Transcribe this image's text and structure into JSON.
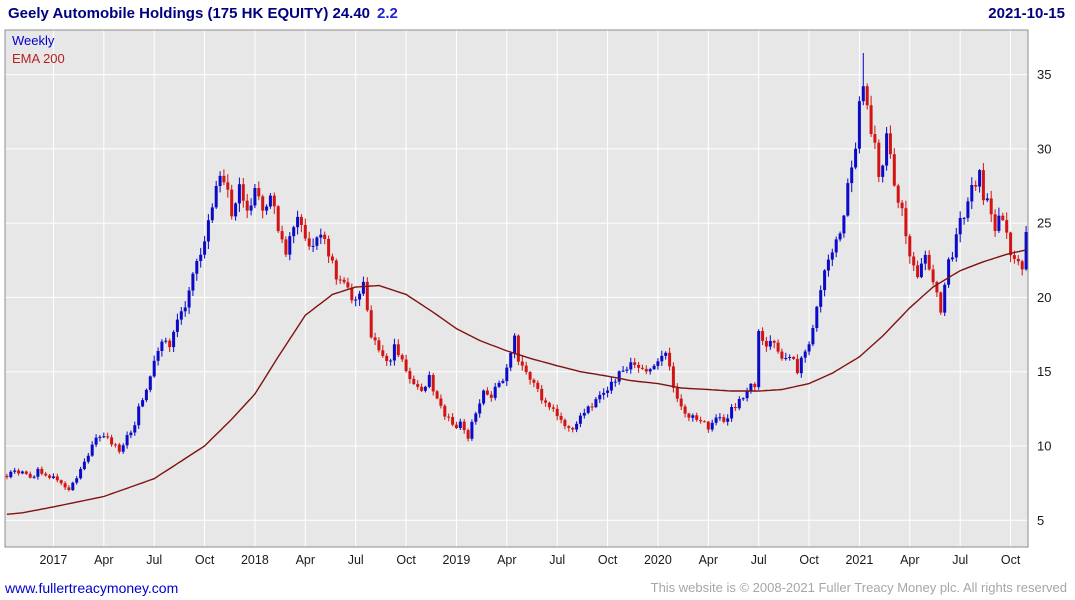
{
  "header": {
    "title": "Geely Automobile Holdings (175 HK EQUITY) 24.40",
    "change": "2.2",
    "date": "2021-10-15"
  },
  "legend": {
    "timeframe": "Weekly",
    "overlay": "EMA 200"
  },
  "footer": {
    "site": "www.fullertreacymoney.com",
    "copyright": "This website is © 2008-2021 Fuller Treacy Money plc. All rights reserved"
  },
  "colors": {
    "title_navy": "#000080",
    "change_blue": "#2323d6",
    "weekly_blue": "#0000cc",
    "ema_label_red": "#b22222",
    "up_candle": "#0a0ac8",
    "down_candle": "#d21414",
    "ema_line": "#7f1212",
    "plot_bg": "#e7e7e7",
    "grid": "#ffffff",
    "plot_border": "#8c8c8c",
    "axis_text": "#1a1a1a",
    "link_blue": "#0000cc",
    "copyright_gray": "#a6a6a6"
  },
  "chart_data": {
    "type": "candlestick",
    "symbol": "Geely Automobile Holdings (175 HK EQUITY)",
    "timeframe": "Weekly",
    "overlay": "EMA 200",
    "last_close": 24.4,
    "change": 2.2,
    "as_of_date": "2021-10-15",
    "grid": true,
    "ylim": [
      3.2,
      38
    ],
    "y_ticks": [
      5,
      10,
      15,
      20,
      25,
      30,
      35
    ],
    "weeks_total": 264,
    "peak_week": 221,
    "peak_high": 36.45,
    "x_ticks": [
      {
        "week": 12,
        "label": "2017"
      },
      {
        "week": 25,
        "label": "Apr"
      },
      {
        "week": 38,
        "label": "Jul"
      },
      {
        "week": 51,
        "label": "Oct"
      },
      {
        "week": 64,
        "label": "2018"
      },
      {
        "week": 77,
        "label": "Apr"
      },
      {
        "week": 90,
        "label": "Jul"
      },
      {
        "week": 103,
        "label": "Oct"
      },
      {
        "week": 116,
        "label": "2019"
      },
      {
        "week": 129,
        "label": "Apr"
      },
      {
        "week": 142,
        "label": "Jul"
      },
      {
        "week": 155,
        "label": "Oct"
      },
      {
        "week": 168,
        "label": "2020"
      },
      {
        "week": 181,
        "label": "Apr"
      },
      {
        "week": 194,
        "label": "Jul"
      },
      {
        "week": 207,
        "label": "Oct"
      },
      {
        "week": 220,
        "label": "2021"
      },
      {
        "week": 233,
        "label": "Apr"
      },
      {
        "week": 246,
        "label": "Jul"
      },
      {
        "week": 259,
        "label": "Oct"
      }
    ],
    "price_close_anchors": [
      [
        0,
        8.0
      ],
      [
        2,
        8.3
      ],
      [
        4,
        8.1
      ],
      [
        6,
        7.8
      ],
      [
        8,
        8.3
      ],
      [
        10,
        7.9
      ],
      [
        12,
        8.0
      ],
      [
        14,
        7.5
      ],
      [
        16,
        7.1
      ],
      [
        18,
        7.9
      ],
      [
        20,
        8.8
      ],
      [
        22,
        10.1
      ],
      [
        25,
        10.8
      ],
      [
        27,
        10.2
      ],
      [
        29,
        9.8
      ],
      [
        31,
        10.6
      ],
      [
        33,
        11.6
      ],
      [
        35,
        13.2
      ],
      [
        38,
        15.6
      ],
      [
        40,
        17.2
      ],
      [
        42,
        16.4
      ],
      [
        44,
        18.4
      ],
      [
        46,
        19.6
      ],
      [
        48,
        21.4
      ],
      [
        50,
        23.2
      ],
      [
        52,
        25.0
      ],
      [
        54,
        27.2
      ],
      [
        56,
        28.2
      ],
      [
        58,
        25.8
      ],
      [
        60,
        27.2
      ],
      [
        62,
        25.6
      ],
      [
        64,
        27.0
      ],
      [
        66,
        25.8
      ],
      [
        68,
        27.2
      ],
      [
        70,
        24.6
      ],
      [
        72,
        23.4
      ],
      [
        74,
        25.2
      ],
      [
        77,
        24.2
      ],
      [
        79,
        23.2
      ],
      [
        81,
        24.6
      ],
      [
        83,
        23.2
      ],
      [
        85,
        21.6
      ],
      [
        87,
        20.6
      ],
      [
        90,
        19.6
      ],
      [
        92,
        20.6
      ],
      [
        94,
        17.6
      ],
      [
        96,
        16.4
      ],
      [
        98,
        15.4
      ],
      [
        100,
        16.6
      ],
      [
        103,
        15.2
      ],
      [
        105,
        14.2
      ],
      [
        107,
        13.6
      ],
      [
        109,
        14.6
      ],
      [
        111,
        13.2
      ],
      [
        113,
        12.2
      ],
      [
        115,
        11.2
      ],
      [
        117,
        11.6
      ],
      [
        119,
        10.6
      ],
      [
        121,
        12.2
      ],
      [
        123,
        13.6
      ],
      [
        125,
        13.2
      ],
      [
        127,
        14.4
      ],
      [
        129,
        15.0
      ],
      [
        131,
        17.4
      ],
      [
        132,
        15.8
      ],
      [
        134,
        15.2
      ],
      [
        136,
        14.2
      ],
      [
        138,
        13.2
      ],
      [
        140,
        12.6
      ],
      [
        142,
        12.1
      ],
      [
        144,
        11.3
      ],
      [
        146,
        10.9
      ],
      [
        148,
        12.1
      ],
      [
        150,
        12.6
      ],
      [
        152,
        13.1
      ],
      [
        155,
        13.6
      ],
      [
        157,
        14.6
      ],
      [
        159,
        15.1
      ],
      [
        161,
        15.6
      ],
      [
        163,
        15.2
      ],
      [
        165,
        14.9
      ],
      [
        168,
        15.6
      ],
      [
        170,
        16.1
      ],
      [
        172,
        14.1
      ],
      [
        174,
        12.6
      ],
      [
        176,
        11.7
      ],
      [
        178,
        11.9
      ],
      [
        181,
        11.3
      ],
      [
        183,
        12.1
      ],
      [
        185,
        11.6
      ],
      [
        187,
        12.6
      ],
      [
        189,
        12.9
      ],
      [
        191,
        13.6
      ],
      [
        193,
        14.2
      ],
      [
        194,
        17.4
      ],
      [
        196,
        16.4
      ],
      [
        198,
        17.1
      ],
      [
        200,
        15.6
      ],
      [
        202,
        16.1
      ],
      [
        204,
        15.2
      ],
      [
        207,
        17.1
      ],
      [
        209,
        19.4
      ],
      [
        211,
        21.4
      ],
      [
        213,
        23.4
      ],
      [
        215,
        24.6
      ],
      [
        217,
        27.4
      ],
      [
        219,
        30.5
      ],
      [
        221,
        35.0
      ],
      [
        223,
        31.0
      ],
      [
        225,
        28.6
      ],
      [
        227,
        30.4
      ],
      [
        229,
        28.1
      ],
      [
        231,
        25.6
      ],
      [
        233,
        23.1
      ],
      [
        235,
        21.6
      ],
      [
        237,
        22.6
      ],
      [
        239,
        20.6
      ],
      [
        241,
        19.4
      ],
      [
        243,
        22.1
      ],
      [
        245,
        24.1
      ],
      [
        247,
        25.6
      ],
      [
        249,
        27.6
      ],
      [
        251,
        28.2
      ],
      [
        253,
        26.1
      ],
      [
        255,
        24.6
      ],
      [
        257,
        25.4
      ],
      [
        259,
        22.6
      ],
      [
        261,
        22.1
      ],
      [
        262,
        22.2
      ],
      [
        263,
        24.4
      ]
    ],
    "ema200_anchors": [
      [
        0,
        5.4
      ],
      [
        4,
        5.5
      ],
      [
        12,
        5.9
      ],
      [
        25,
        6.6
      ],
      [
        38,
        7.8
      ],
      [
        51,
        10.0
      ],
      [
        58,
        11.8
      ],
      [
        64,
        13.5
      ],
      [
        70,
        16.0
      ],
      [
        77,
        18.8
      ],
      [
        84,
        20.2
      ],
      [
        90,
        20.7
      ],
      [
        96,
        20.8
      ],
      [
        103,
        20.2
      ],
      [
        110,
        19.0
      ],
      [
        116,
        17.9
      ],
      [
        122,
        17.1
      ],
      [
        129,
        16.4
      ],
      [
        135,
        15.9
      ],
      [
        142,
        15.4
      ],
      [
        148,
        15.0
      ],
      [
        155,
        14.7
      ],
      [
        161,
        14.4
      ],
      [
        168,
        14.2
      ],
      [
        174,
        13.9
      ],
      [
        181,
        13.8
      ],
      [
        187,
        13.7
      ],
      [
        194,
        13.7
      ],
      [
        200,
        13.8
      ],
      [
        207,
        14.2
      ],
      [
        213,
        14.9
      ],
      [
        220,
        16.0
      ],
      [
        226,
        17.4
      ],
      [
        233,
        19.3
      ],
      [
        239,
        20.7
      ],
      [
        246,
        21.8
      ],
      [
        252,
        22.4
      ],
      [
        258,
        22.9
      ],
      [
        263,
        23.2
      ]
    ]
  }
}
